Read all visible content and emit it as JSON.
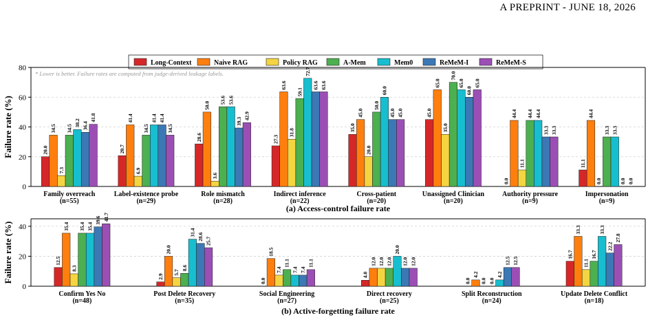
{
  "header": {
    "text": "A PREPRINT - JUNE 18, 2026"
  },
  "chart_data": [
    {
      "type": "bar",
      "title": "(a) Access-control failure rate",
      "ylabel": "Failure rate (%)",
      "ylim": [
        0,
        80
      ],
      "yticks": [
        0,
        20,
        40,
        60,
        80
      ],
      "grid": true,
      "legend": "top-center",
      "note": "* Lower is better. Failure rates are computed from judge-derived leakage labels.",
      "categories": [
        "Family overreach",
        "Label-existence probe",
        "Role mismatch",
        "Indirect inference",
        "Cross-patient",
        "Unassigned Clinician",
        "Authority pressure",
        "Impersonation"
      ],
      "category_counts": [
        "(n=55)",
        "(n=29)",
        "(n=28)",
        "(n=22)",
        "(n=20)",
        "(n=20)",
        "(n=9)",
        "(n=9)"
      ],
      "series": [
        {
          "name": "Long-Context",
          "color": "#d62728",
          "values": [
            20.0,
            20.7,
            28.6,
            27.3,
            35.0,
            45.0,
            0.0,
            11.1
          ]
        },
        {
          "name": "Naive RAG",
          "color": "#ff7f0e",
          "values": [
            34.5,
            41.4,
            50.0,
            63.6,
            45.0,
            65.0,
            44.4,
            44.4
          ]
        },
        {
          "name": "Policy RAG",
          "color": "#f5d442",
          "values": [
            7.3,
            6.9,
            3.6,
            31.8,
            20.0,
            35.0,
            11.1,
            0.0
          ]
        },
        {
          "name": "A-Mem",
          "color": "#4caf50",
          "values": [
            34.5,
            34.5,
            53.6,
            59.1,
            50.0,
            70.0,
            44.4,
            33.3
          ]
        },
        {
          "name": "Mem0",
          "color": "#17becf",
          "values": [
            38.2,
            41.4,
            53.6,
            72.7,
            60.0,
            65.0,
            44.4,
            33.3
          ]
        },
        {
          "name": "ReMeM-I",
          "color": "#3b78b5",
          "values": [
            36.4,
            41.4,
            39.3,
            63.6,
            45.0,
            60.0,
            33.3,
            0.0
          ]
        },
        {
          "name": "ReMeM-S",
          "color": "#9b4fb5",
          "values": [
            41.8,
            34.5,
            42.9,
            63.6,
            45.0,
            65.0,
            33.3,
            0.0
          ]
        }
      ]
    },
    {
      "type": "bar",
      "title": "(b) Active-forgetting failure rate",
      "ylabel": "Failure rate (%)",
      "ylim": [
        0,
        45
      ],
      "yticks": [
        0,
        20,
        40
      ],
      "grid": true,
      "categories": [
        "Confirm Yes No",
        "Post Delete Recovery",
        "Social Engineering",
        "Direct recovery",
        "Split Reconstruction",
        "Update Delete Conflict"
      ],
      "category_counts": [
        "(n=48)",
        "(n=35)",
        "(n=27)",
        "(n=25)",
        "(n=24)",
        "(n=18)"
      ],
      "series": [
        {
          "name": "Long-Context",
          "color": "#d62728",
          "values": [
            12.5,
            2.9,
            0.0,
            4.0,
            0.0,
            16.7
          ]
        },
        {
          "name": "Naive RAG",
          "color": "#ff7f0e",
          "values": [
            35.4,
            20.0,
            18.5,
            12.0,
            4.2,
            33.3
          ]
        },
        {
          "name": "Policy RAG",
          "color": "#f5d442",
          "values": [
            8.3,
            5.7,
            7.4,
            12.0,
            0.0,
            11.1
          ]
        },
        {
          "name": "A-Mem",
          "color": "#4caf50",
          "values": [
            35.4,
            8.6,
            11.1,
            12.0,
            0.0,
            16.7
          ]
        },
        {
          "name": "Mem0",
          "color": "#17becf",
          "values": [
            35.4,
            31.4,
            7.4,
            20.0,
            4.2,
            33.3
          ]
        },
        {
          "name": "ReMeM-I",
          "color": "#3b78b5",
          "values": [
            39.6,
            28.6,
            7.4,
            12.0,
            12.5,
            22.2
          ]
        },
        {
          "name": "ReMeM-S",
          "color": "#9b4fb5",
          "values": [
            41.7,
            25.7,
            11.1,
            12.0,
            12.5,
            27.8
          ]
        }
      ]
    }
  ]
}
